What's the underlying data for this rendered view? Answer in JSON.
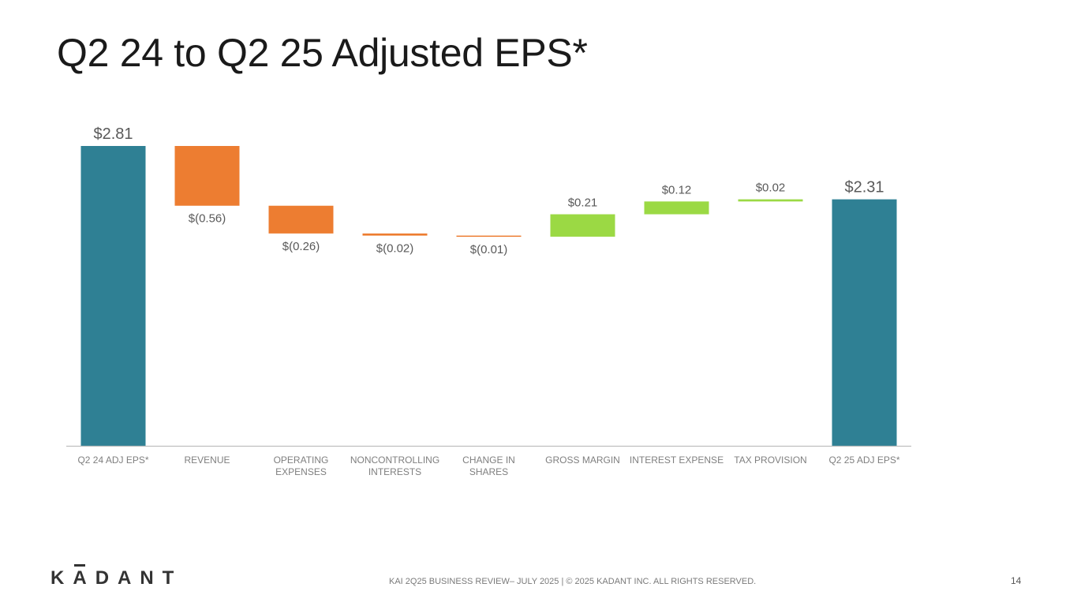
{
  "slide": {
    "title": "Q2 24 to Q2 25 Adjusted EPS*",
    "footer_text": "KAI 2Q25 BUSINESS REVIEW– JULY 2025 | © 2025 KADANT INC. ALL RIGHTS RESERVED.",
    "page_number": "14"
  },
  "logo": {
    "first_letter": "K",
    "macron_letter": "A",
    "rest": "DANT"
  },
  "colors": {
    "total": "#2f8094",
    "decrease": "#ed7d31",
    "increase": "#9bd944",
    "axis": "#bfbfbf",
    "label": "#595959",
    "category": "#7f7f7f"
  },
  "chart_data": {
    "type": "waterfall",
    "title": "Q2 24 to Q2 25 Adjusted EPS*",
    "ylim": [
      0,
      2.81
    ],
    "categories": [
      [
        "Q2 24 ADJ EPS*"
      ],
      [
        "REVENUE"
      ],
      [
        "OPERATING",
        "EXPENSES"
      ],
      [
        "NONCONTROLLING",
        "INTERESTS"
      ],
      [
        "CHANGE IN",
        "SHARES"
      ],
      [
        "GROSS MARGIN"
      ],
      [
        "INTEREST EXPENSE"
      ],
      [
        "TAX PROVISION"
      ],
      [
        "Q2 25 ADJ EPS*"
      ]
    ],
    "values": [
      2.81,
      -0.56,
      -0.26,
      -0.02,
      -0.01,
      0.21,
      0.12,
      0.02,
      2.31
    ],
    "kinds": [
      "total",
      "decrease",
      "decrease",
      "decrease",
      "decrease",
      "increase",
      "increase",
      "increase",
      "total"
    ],
    "labels": [
      "$2.81",
      "$(0.56)",
      "$(0.26)",
      "$(0.02)",
      "$(0.01)",
      "$0.21",
      "$0.12",
      "$0.02",
      "$2.31"
    ]
  }
}
